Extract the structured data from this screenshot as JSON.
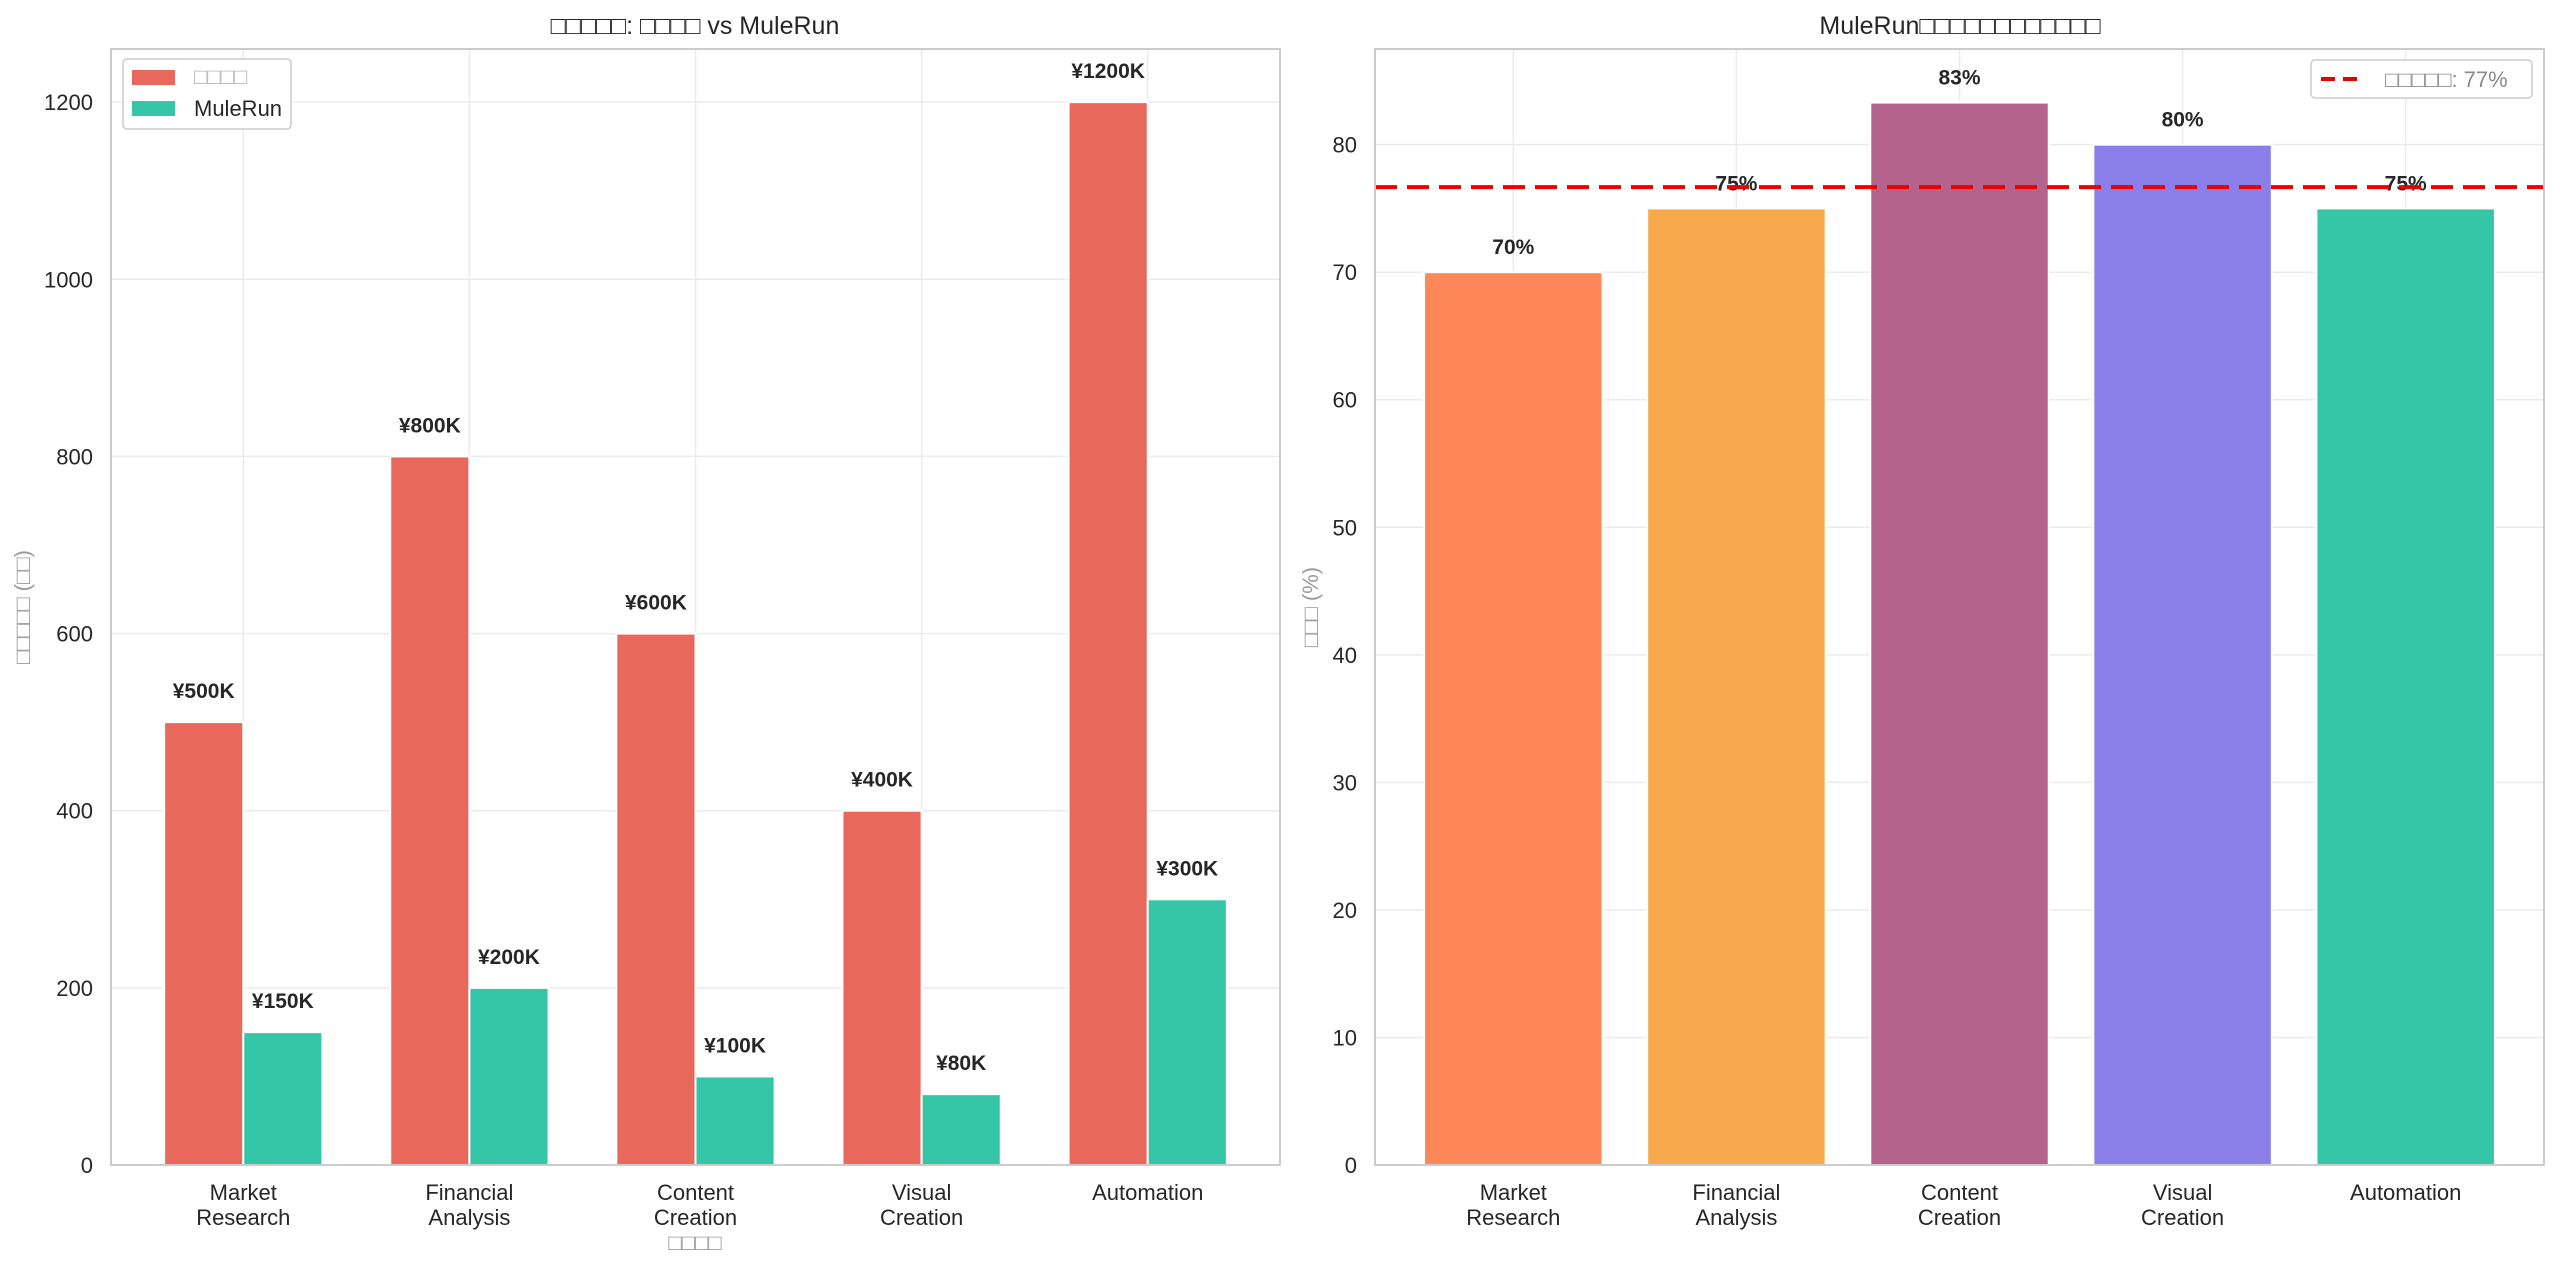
{
  "chart_data": [
    {
      "type": "bar",
      "title": "□□□□□: □□□□ vs MuleRun",
      "xlabel": "□□□□",
      "ylabel": "□□□□□ (□□)",
      "categories": [
        "Market\nResearch",
        "Financial\nAnalysis",
        "Content\nCreation",
        "Visual\nCreation",
        "Automation"
      ],
      "series": [
        {
          "name": "□□□□",
          "color": "#E8695C",
          "values": [
            500,
            800,
            600,
            400,
            1200
          ],
          "labels": [
            "¥500K",
            "¥800K",
            "¥600K",
            "¥400K",
            "¥1200K"
          ]
        },
        {
          "name": "MuleRun",
          "color": "#35C6A8",
          "values": [
            150,
            200,
            100,
            80,
            300
          ],
          "labels": [
            "¥150K",
            "¥200K",
            "¥100K",
            "¥80K",
            "¥300K"
          ]
        }
      ],
      "yticks": [
        0,
        200,
        400,
        600,
        800,
        1000,
        1200
      ],
      "ylim": [
        0,
        1260
      ],
      "grid": true,
      "legend": "top-left"
    },
    {
      "type": "bar",
      "title": "MuleRun□□□□□□□□□□□□",
      "xlabel": "",
      "ylabel": "□□□ (%)",
      "categories": [
        "Market\nResearch",
        "Financial\nAnalysis",
        "Content\nCreation",
        "Visual\nCreation",
        "Automation"
      ],
      "values": [
        70,
        75,
        83.3,
        80,
        75
      ],
      "labels": [
        "70%",
        "75%",
        "83%",
        "80%",
        "75%"
      ],
      "colors": [
        "#FF875A",
        "#F7A94B",
        "#B4648C",
        "#8A7EE8",
        "#35C6A8"
      ],
      "reference_line": {
        "value": 76.67,
        "label": "□□□□□: 77%",
        "color": "#E60000",
        "style": "dashed"
      },
      "yticks": [
        0,
        10,
        20,
        30,
        40,
        50,
        60,
        70,
        80
      ],
      "ylim": [
        0,
        87.5
      ],
      "grid": true,
      "legend": "top-right"
    }
  ]
}
